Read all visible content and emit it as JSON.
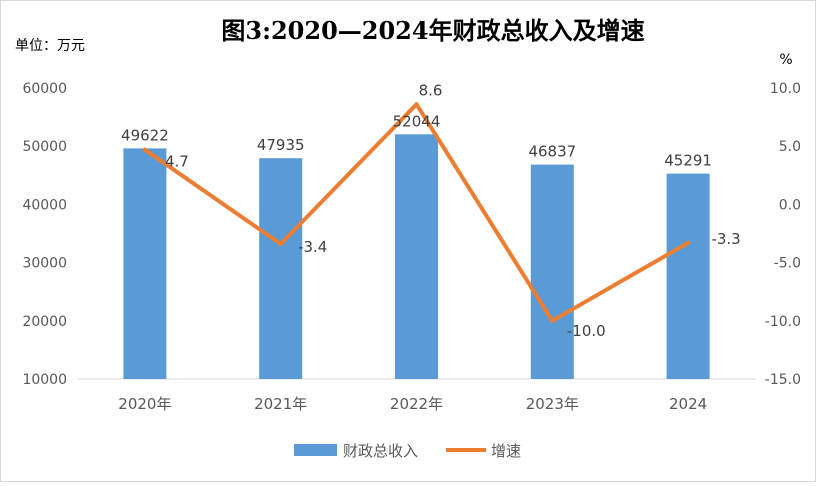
{
  "chart_data": {
    "type": "bar",
    "title": "图3:2020—2024年财政总收入及增速",
    "left_unit_label": "单位：万元",
    "right_unit_label": "%",
    "categories": [
      "2020年",
      "2021年",
      "2022年",
      "2023年",
      "2024"
    ],
    "series": [
      {
        "name": "财政总收入",
        "type": "bar",
        "axis": "left",
        "color": "#5B9BD5",
        "values": [
          49622,
          47935,
          52044,
          46837,
          45291
        ]
      },
      {
        "name": "增速",
        "type": "line",
        "axis": "right",
        "color": "#ED7D31",
        "values": [
          4.7,
          -3.4,
          8.6,
          -10.0,
          -3.3
        ]
      }
    ],
    "left_axis": {
      "ylim": [
        10000,
        60000
      ],
      "ticks": [
        "60000",
        "50000",
        "40000",
        "30000",
        "20000",
        "10000"
      ]
    },
    "right_axis": {
      "ylim": [
        -15,
        10
      ],
      "ticks": [
        "10.0",
        "5.0",
        "0.0",
        "-5.0",
        "-10.0",
        "-15.0"
      ]
    },
    "bar_labels": [
      "49622",
      "47935",
      "52044",
      "46837",
      "45291"
    ],
    "line_labels": [
      "4.7",
      "-3.4",
      "8.6",
      "-10.0",
      "-3.3"
    ],
    "grid": false,
    "legend_position": "bottom"
  }
}
